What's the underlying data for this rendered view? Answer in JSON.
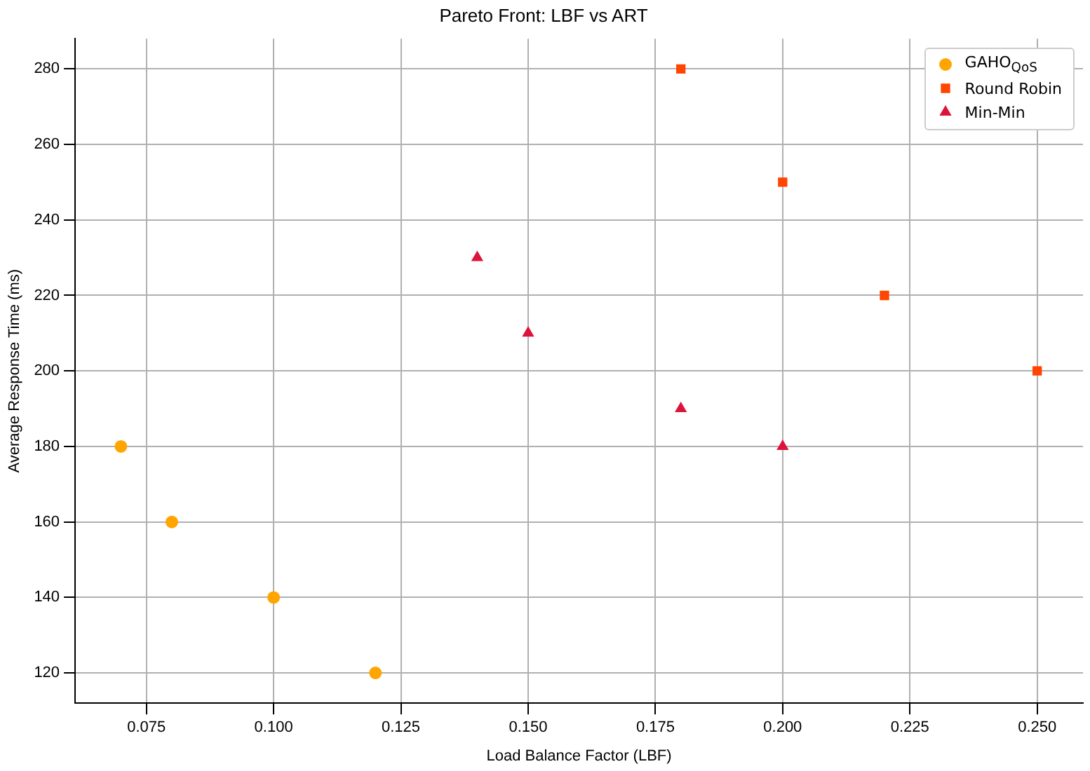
{
  "chart_data": {
    "type": "scatter",
    "title": "Pareto Front: LBF vs ART",
    "xlabel": "Load Balance Factor (LBF)",
    "ylabel": "Average Response Time (ms)",
    "series": [
      {
        "name": "GAHO$_{QoS}$",
        "color": "#ffa500",
        "marker": "circle",
        "x": [
          0.07,
          0.08,
          0.1,
          0.12
        ],
        "values": [
          180,
          160,
          140,
          120
        ]
      },
      {
        "name": "Round Robin",
        "color": "#ff4500",
        "marker": "square",
        "x": [
          0.18,
          0.2,
          0.22,
          0.25
        ],
        "values": [
          280,
          250,
          220,
          200
        ]
      },
      {
        "name": "Min-Min",
        "color": "#dc143c",
        "marker": "triangle",
        "x": [
          0.14,
          0.15,
          0.18,
          0.2
        ],
        "values": [
          230,
          210,
          190,
          180
        ]
      }
    ],
    "xlim": [
      0.061,
      0.259
    ],
    "ylim": [
      112,
      288
    ],
    "xticks": [
      {
        "value": 0.075,
        "label": "0.075"
      },
      {
        "value": 0.1,
        "label": "0.100"
      },
      {
        "value": 0.125,
        "label": "0.125"
      },
      {
        "value": 0.15,
        "label": "0.150"
      },
      {
        "value": 0.175,
        "label": "0.175"
      },
      {
        "value": 0.2,
        "label": "0.200"
      },
      {
        "value": 0.225,
        "label": "0.225"
      },
      {
        "value": 0.25,
        "label": "0.250"
      }
    ],
    "yticks": [
      120,
      140,
      160,
      180,
      200,
      220,
      240,
      260,
      280
    ],
    "grid": true,
    "legend": "top right"
  }
}
